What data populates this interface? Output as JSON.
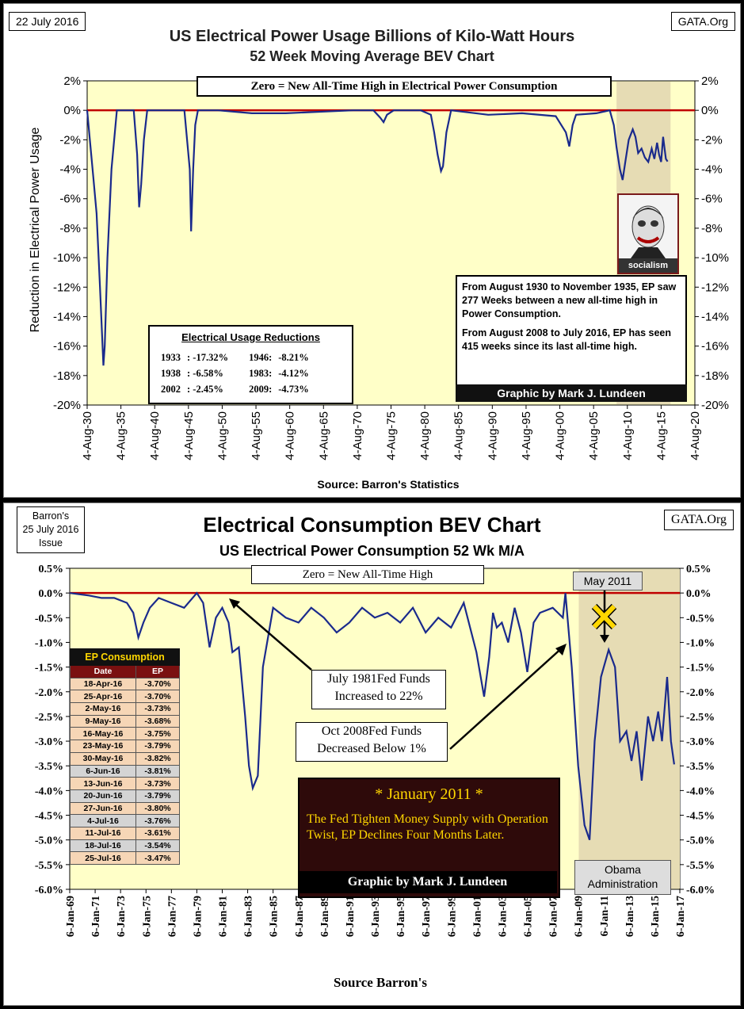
{
  "top": {
    "date_label": "22 July 2016",
    "site": "GATA.Org",
    "title": "US Electrical Power Usage Billions of Kilo-Watt Hours",
    "subtitle": "52 Week Moving Average BEV Chart",
    "banner": "Zero = New All-Time High in Electrical Power Consumption",
    "ylabel": "Reduction in Electrical Power Usage",
    "xlabel": "Source: Barron's Statistics",
    "credit": "Graphic by Mark J. Lundeen",
    "note1": "From August 1930 to November 1935, EP saw 277 Weeks between a new all-time high in Power Consumption.",
    "note2": "From August 2008 to July 2016, EP has seen 415 weeks since its last all-time high.",
    "image_caption": "socialism",
    "reductions": {
      "title": "Electrical Usage Reductions",
      "rows": [
        {
          "y1": "1933",
          "v1": ": -17.32%",
          "y2": "1946:",
          "v2": "-8.21%"
        },
        {
          "y1": "1938",
          "v1": ":    -6.58%",
          "y2": "1983:",
          "v2": "-4.12%"
        },
        {
          "y1": "2002",
          "v1": ":    -2.45%",
          "y2": "2009:",
          "v2": "-4.73%"
        }
      ]
    }
  },
  "bottom": {
    "issue_label_1": "Barron's",
    "issue_label_2": "25 July 2016",
    "issue_label_3": "Issue",
    "site": "GATA.Org",
    "title": "Electrical Consumption BEV Chart",
    "subtitle": "US Electrical Power Consumption 52 Wk M/A",
    "banner": "Zero = New All-Time High",
    "xlabel": "Source Barron's",
    "may_label": "May 2011",
    "ann1_line1": "July 1981Fed Funds",
    "ann1_line2": "Increased to 22%",
    "ann2_line1": "Oct 2008Fed Funds",
    "ann2_line2": "Decreased Below 1%",
    "jan_title": "* January 2011 *",
    "jan_text": "The Fed Tighten Money Supply with Operation Twist, EP Declines Four Months Later.",
    "credit": "Graphic by Mark J. Lundeen",
    "obama_1": "Obama",
    "obama_2": "Administration",
    "ep_table": {
      "title": "EP Consumption",
      "h_date": "Date",
      "h_ep": "EP",
      "rows": [
        {
          "d": "18-Apr-16",
          "v": "-3.70%"
        },
        {
          "d": "25-Apr-16",
          "v": "-3.70%"
        },
        {
          "d": "2-May-16",
          "v": "-3.73%"
        },
        {
          "d": "9-May-16",
          "v": "-3.68%"
        },
        {
          "d": "16-May-16",
          "v": "-3.75%"
        },
        {
          "d": "23-May-16",
          "v": "-3.79%"
        },
        {
          "d": "30-May-16",
          "v": "-3.82%"
        },
        {
          "d": "6-Jun-16",
          "v": "-3.81%"
        },
        {
          "d": "13-Jun-16",
          "v": "-3.73%"
        },
        {
          "d": "20-Jun-16",
          "v": "-3.79%"
        },
        {
          "d": "27-Jun-16",
          "v": "-3.80%"
        },
        {
          "d": "4-Jul-16",
          "v": "-3.76%"
        },
        {
          "d": "11-Jul-16",
          "v": "-3.61%"
        },
        {
          "d": "18-Jul-16",
          "v": "-3.54%"
        },
        {
          "d": "25-Jul-16",
          "v": "-3.47%"
        }
      ]
    }
  },
  "colors": {
    "plot_bg": "#ffffc8",
    "line": "#1a2a8c",
    "zero": "#c00000",
    "shade": "#e6dcb4",
    "dark_box": "#2e0a0a",
    "gold": "#ffd700"
  },
  "chart_data": [
    {
      "type": "line",
      "title": "US Electrical Power Usage Billions of Kilo-Watt Hours",
      "ylabel": "Reduction in Electrical Power Usage",
      "xlabel": "Source: Barron's Statistics",
      "ylim": [
        -20,
        2
      ],
      "xlim": [
        1930.6,
        2020.6
      ],
      "yticks": [
        "2%",
        "0%",
        "-2%",
        "-4%",
        "-6%",
        "-8%",
        "-10%",
        "-12%",
        "-14%",
        "-16%",
        "-18%",
        "-20%"
      ],
      "ytick_values": [
        2,
        0,
        -2,
        -4,
        -6,
        -8,
        -10,
        -12,
        -14,
        -16,
        -18,
        -20
      ],
      "xticks": [
        "4-Aug-30",
        "4-Aug-35",
        "4-Aug-40",
        "4-Aug-45",
        "4-Aug-50",
        "4-Aug-55",
        "4-Aug-60",
        "4-Aug-65",
        "4-Aug-70",
        "4-Aug-75",
        "4-Aug-80",
        "4-Aug-85",
        "4-Aug-90",
        "4-Aug-95",
        "4-Aug-00",
        "4-Aug-05",
        "4-Aug-10",
        "4-Aug-15",
        "4-Aug-20"
      ],
      "xtick_values": [
        1930.6,
        1935.6,
        1940.6,
        1945.6,
        1950.6,
        1955.6,
        1960.6,
        1965.6,
        1970.6,
        1975.6,
        1980.6,
        1985.6,
        1990.6,
        1995.6,
        2000.6,
        2005.6,
        2010.6,
        2015.6,
        2020.6
      ],
      "series": [
        {
          "name": "EP BEV",
          "x": [
            1930.6,
            1931.0,
            1931.5,
            1932.0,
            1932.5,
            1933.0,
            1933.2,
            1933.6,
            1934.2,
            1935.0,
            1935.9,
            1936.5,
            1937.5,
            1938.0,
            1938.3,
            1938.6,
            1939.0,
            1939.5,
            1940.0,
            1945.0,
            1945.8,
            1946.0,
            1946.3,
            1946.6,
            1947.0,
            1947.5,
            1950,
            1955,
            1960,
            1965,
            1970,
            1973,
            1974.0,
            1974.5,
            1975.0,
            1976.0,
            1980.0,
            1981.5,
            1982.0,
            1982.5,
            1983.0,
            1983.3,
            1983.8,
            1984.5,
            1990,
            1995,
            2000.0,
            2001.5,
            2002.0,
            2002.5,
            2003.0,
            2006,
            2008.0,
            2008.6,
            2009.0,
            2009.5,
            2009.9,
            2010.3,
            2010.8,
            2011.4,
            2011.8,
            2012.2,
            2012.7,
            2013.2,
            2013.7,
            2014.2,
            2014.6,
            2015.0,
            2015.3,
            2015.6,
            2015.9,
            2016.3,
            2016.56
          ],
          "y": [
            0,
            -2,
            -4.5,
            -7,
            -12,
            -17.32,
            -16,
            -10,
            -4,
            0,
            0,
            0,
            0,
            -3,
            -6.58,
            -5,
            -2,
            0,
            0,
            0,
            -4,
            -8.21,
            -4,
            -1,
            0,
            0,
            0,
            -0.2,
            -0.2,
            -0.1,
            0,
            0,
            -0.5,
            -0.8,
            -0.3,
            0,
            0,
            -0.3,
            -1.5,
            -3,
            -4.12,
            -3.8,
            -1.5,
            0,
            -0.3,
            -0.2,
            -0.4,
            -1.5,
            -2.45,
            -1,
            -0.3,
            -0.2,
            0,
            -1,
            -2.5,
            -4.0,
            -4.73,
            -3.5,
            -2.0,
            -1.3,
            -1.8,
            -2.9,
            -2.6,
            -3.2,
            -3.5,
            -2.6,
            -3.3,
            -2.2,
            -3.0,
            -3.5,
            -1.8,
            -3.3,
            -3.47
          ]
        }
      ]
    },
    {
      "type": "line",
      "title": "Electrical Consumption BEV Chart",
      "subtitle": "US Electrical Power Consumption 52 Wk M/A",
      "xlabel": "Source Barron's",
      "ylim": [
        -6.0,
        0.5
      ],
      "xlim": [
        1969.0,
        2017.0
      ],
      "yticks": [
        "0.5%",
        "0.0%",
        "-0.5%",
        "-1.0%",
        "-1.5%",
        "-2.0%",
        "-2.5%",
        "-3.0%",
        "-3.5%",
        "-4.0%",
        "-4.5%",
        "-5.0%",
        "-5.5%",
        "-6.0%"
      ],
      "ytick_values": [
        0.5,
        0,
        -0.5,
        -1,
        -1.5,
        -2,
        -2.5,
        -3,
        -3.5,
        -4,
        -4.5,
        -5,
        -5.5,
        -6
      ],
      "xticks": [
        "6-Jan-69",
        "6-Jan-71",
        "6-Jan-73",
        "6-Jan-75",
        "6-Jan-77",
        "6-Jan-79",
        "6-Jan-81",
        "6-Jan-83",
        "6-Jan-85",
        "6-Jan-87",
        "6-Jan-89",
        "6-Jan-91",
        "6-Jan-93",
        "6-Jan-95",
        "6-Jan-97",
        "6-Jan-99",
        "6-Jan-01",
        "6-Jan-03",
        "6-Jan-05",
        "6-Jan-07",
        "6-Jan-09",
        "6-Jan-11",
        "6-Jan-13",
        "6-Jan-15",
        "6-Jan-17"
      ],
      "xtick_values": [
        1969,
        1971,
        1973,
        1975,
        1977,
        1979,
        1981,
        1983,
        1985,
        1987,
        1989,
        1991,
        1993,
        1995,
        1997,
        1999,
        2001,
        2003,
        2005,
        2007,
        2009,
        2011,
        2013,
        2015,
        2017
      ],
      "series": [
        {
          "name": "EP 52 Wk M/A",
          "x": [
            1969.0,
            1970.5,
            1971.5,
            1972.5,
            1973.5,
            1974.0,
            1974.4,
            1974.8,
            1975.3,
            1976.0,
            1977.0,
            1978.0,
            1979.0,
            1979.5,
            1980.0,
            1980.5,
            1981.0,
            1981.5,
            1981.8,
            1982.3,
            1982.8,
            1983.1,
            1983.4,
            1983.8,
            1984.2,
            1985,
            1986,
            1987,
            1988,
            1989,
            1990,
            1991,
            1992,
            1993,
            1994,
            1995,
            1996,
            1997,
            1998,
            1999,
            2000,
            2001.0,
            2001.6,
            2002.0,
            2002.3,
            2002.6,
            2003.0,
            2003.5,
            2004.0,
            2004.5,
            2005.0,
            2005.5,
            2006.0,
            2007.0,
            2007.8,
            2008.0,
            2008.5,
            2009.0,
            2009.5,
            2009.9,
            2010.3,
            2010.8,
            2011.4,
            2011.9,
            2012.3,
            2012.8,
            2013.2,
            2013.6,
            2014.0,
            2014.5,
            2014.9,
            2015.3,
            2015.6,
            2016.0,
            2016.3,
            2016.56
          ],
          "y": [
            0,
            -0.05,
            -0.1,
            -0.1,
            -0.2,
            -0.4,
            -0.9,
            -0.6,
            -0.3,
            -0.1,
            -0.2,
            -0.3,
            0,
            -0.2,
            -1.1,
            -0.5,
            -0.3,
            -0.6,
            -1.2,
            -1.1,
            -2.5,
            -3.5,
            -3.95,
            -3.7,
            -1.5,
            -0.3,
            -0.5,
            -0.6,
            -0.3,
            -0.5,
            -0.8,
            -0.6,
            -0.3,
            -0.5,
            -0.4,
            -0.6,
            -0.3,
            -0.8,
            -0.5,
            -0.7,
            -0.2,
            -1.2,
            -2.1,
            -1.3,
            -0.4,
            -0.7,
            -0.6,
            -1.0,
            -0.3,
            -0.8,
            -1.6,
            -0.6,
            -0.4,
            -0.3,
            -0.5,
            0,
            -1.5,
            -3.5,
            -4.7,
            -5.0,
            -3.0,
            -1.7,
            -1.15,
            -1.5,
            -3.0,
            -2.8,
            -3.4,
            -2.8,
            -3.8,
            -2.5,
            -3.0,
            -2.4,
            -3.0,
            -1.7,
            -3.0,
            -3.47
          ]
        }
      ]
    }
  ]
}
